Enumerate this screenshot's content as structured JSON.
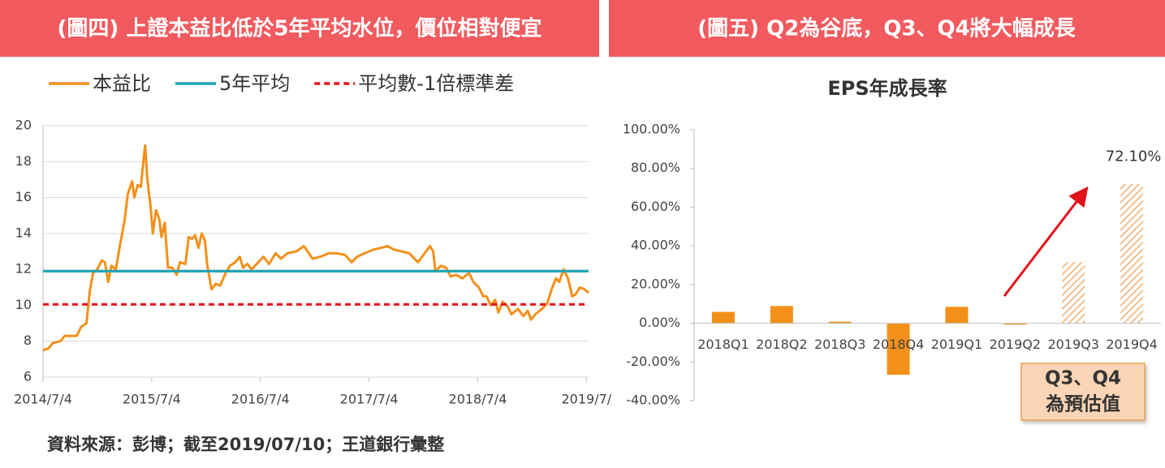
{
  "chart_data": [
    {
      "type": "line",
      "header": "(圖四) 上證本益比低於5年平均水位，價位相對便宜",
      "source": "資料來源：彭博；截至2019/07/10；王道銀行彙整",
      "xlim": [
        2014.5,
        2019.52
      ],
      "xticks": [
        {
          "value": 2014.5,
          "label": "2014/7/4"
        },
        {
          "value": 2015.5,
          "label": "2015/7/4"
        },
        {
          "value": 2016.5,
          "label": "2016/7/4"
        },
        {
          "value": 2017.5,
          "label": "2017/7/4"
        },
        {
          "value": 2018.5,
          "label": "2018/7/4"
        },
        {
          "value": 2019.5,
          "label": "2019/7/"
        }
      ],
      "ylim": [
        6,
        20
      ],
      "yticks": [
        6,
        8,
        10,
        12,
        14,
        16,
        18,
        20
      ],
      "grid": true,
      "series": [
        {
          "name": "本益比",
          "color": "#f39019",
          "dash": false,
          "x": [
            2014.5,
            2014.55,
            2014.59,
            2014.66,
            2014.7,
            2014.81,
            2014.85,
            2014.9,
            2014.93,
            2014.96,
            2015.0,
            2015.04,
            2015.07,
            2015.1,
            2015.13,
            2015.17,
            2015.21,
            2015.25,
            2015.28,
            2015.32,
            2015.34,
            2015.37,
            2015.4,
            2015.43,
            2015.44,
            2015.46,
            2015.49,
            2015.51,
            2015.54,
            2015.57,
            2015.59,
            2015.62,
            2015.65,
            2015.69,
            2015.73,
            2015.76,
            2015.81,
            2015.84,
            2015.87,
            2015.9,
            2015.93,
            2015.96,
            2015.99,
            2016.01,
            2016.05,
            2016.09,
            2016.13,
            2016.18,
            2016.22,
            2016.27,
            2016.31,
            2016.34,
            2016.38,
            2016.42,
            2016.48,
            2016.53,
            2016.58,
            2016.64,
            2016.69,
            2016.75,
            2016.83,
            2016.9,
            2016.98,
            2017.05,
            2017.13,
            2017.2,
            2017.28,
            2017.34,
            2017.39,
            2017.46,
            2017.54,
            2017.61,
            2017.67,
            2017.73,
            2017.8,
            2017.87,
            2017.95,
            2018.0,
            2018.06,
            2018.09,
            2018.11,
            2018.16,
            2018.21,
            2018.25,
            2018.3,
            2018.36,
            2018.42,
            2018.46,
            2018.51,
            2018.55,
            2018.58,
            2018.62,
            2018.66,
            2018.69,
            2018.73,
            2018.78,
            2018.81,
            2018.87,
            2018.92,
            2018.96,
            2018.99,
            2019.03,
            2019.09,
            2019.14,
            2019.18,
            2019.22,
            2019.25,
            2019.29,
            2019.33,
            2019.37,
            2019.4,
            2019.44,
            2019.48,
            2019.52
          ],
          "values": [
            7.5,
            7.6,
            7.9,
            8.0,
            8.3,
            8.3,
            8.8,
            9.0,
            10.8,
            11.8,
            12.0,
            12.5,
            12.4,
            11.3,
            12.2,
            12.0,
            13.4,
            14.7,
            16.2,
            16.9,
            16.0,
            16.7,
            16.6,
            18.4,
            18.9,
            17.0,
            15.5,
            14.0,
            15.3,
            14.8,
            13.8,
            14.6,
            12.1,
            12.1,
            11.7,
            12.4,
            12.3,
            13.8,
            13.7,
            13.9,
            13.2,
            14.0,
            13.6,
            12.3,
            10.9,
            11.2,
            11.1,
            11.8,
            12.2,
            12.4,
            12.7,
            12.1,
            12.3,
            12.0,
            12.4,
            12.7,
            12.3,
            12.9,
            12.6,
            12.9,
            13.0,
            13.3,
            12.6,
            12.7,
            12.9,
            12.9,
            12.8,
            12.4,
            12.7,
            12.9,
            13.1,
            13.2,
            13.3,
            13.1,
            13.0,
            12.9,
            12.4,
            12.8,
            13.3,
            13.0,
            11.9,
            12.2,
            12.1,
            11.6,
            11.7,
            11.5,
            11.8,
            11.3,
            11.0,
            10.5,
            10.5,
            10.0,
            10.3,
            9.6,
            10.2,
            9.9,
            9.5,
            9.8,
            9.4,
            9.7,
            9.2,
            9.5,
            9.8,
            10.1,
            10.9,
            11.5,
            11.3,
            12.0,
            11.5,
            10.5,
            10.6,
            11.0,
            10.9,
            10.7
          ]
        },
        {
          "name": "5年平均",
          "color": "#1ba3b5",
          "dash": false,
          "x": [
            2014.5,
            2019.52
          ],
          "values": [
            11.9,
            11.9
          ]
        },
        {
          "name": "平均數-1倍標準差",
          "color": "#e3131b",
          "dash": true,
          "x": [
            2014.5,
            2019.52
          ],
          "values": [
            10.05,
            10.05
          ]
        }
      ]
    },
    {
      "type": "bar",
      "header": "(圖五) Q2為谷底，Q3、Q4將大幅成長",
      "title": "EPS年成長率",
      "categories": [
        "2018Q1",
        "2018Q2",
        "2018Q3",
        "2018Q4",
        "2019Q1",
        "2019Q2",
        "2019Q3",
        "2019Q4"
      ],
      "values": [
        5.9,
        8.9,
        0.8,
        -26.6,
        8.5,
        -0.7,
        31.6,
        72.1
      ],
      "value_labels": [
        null,
        null,
        null,
        null,
        null,
        null,
        null,
        "72.10%"
      ],
      "pattern": [
        "solid",
        "solid",
        "solid",
        "solid",
        "solid",
        "solid",
        "hatch",
        "hatch"
      ],
      "color": "#f39019",
      "ylim": [
        -40,
        100
      ],
      "yticks": [
        {
          "value": -40,
          "label": "-40.00%"
        },
        {
          "value": -20,
          "label": "-20.00%"
        },
        {
          "value": 0,
          "label": "0.00%"
        },
        {
          "value": 20,
          "label": "20.00%"
        },
        {
          "value": 40,
          "label": "40.00%"
        },
        {
          "value": 60,
          "label": "60.00%"
        },
        {
          "value": 80,
          "label": "80.00%"
        },
        {
          "value": 100,
          "label": "100.00%"
        }
      ],
      "annotation": [
        "Q3、Q4",
        "為預估值"
      ]
    }
  ]
}
